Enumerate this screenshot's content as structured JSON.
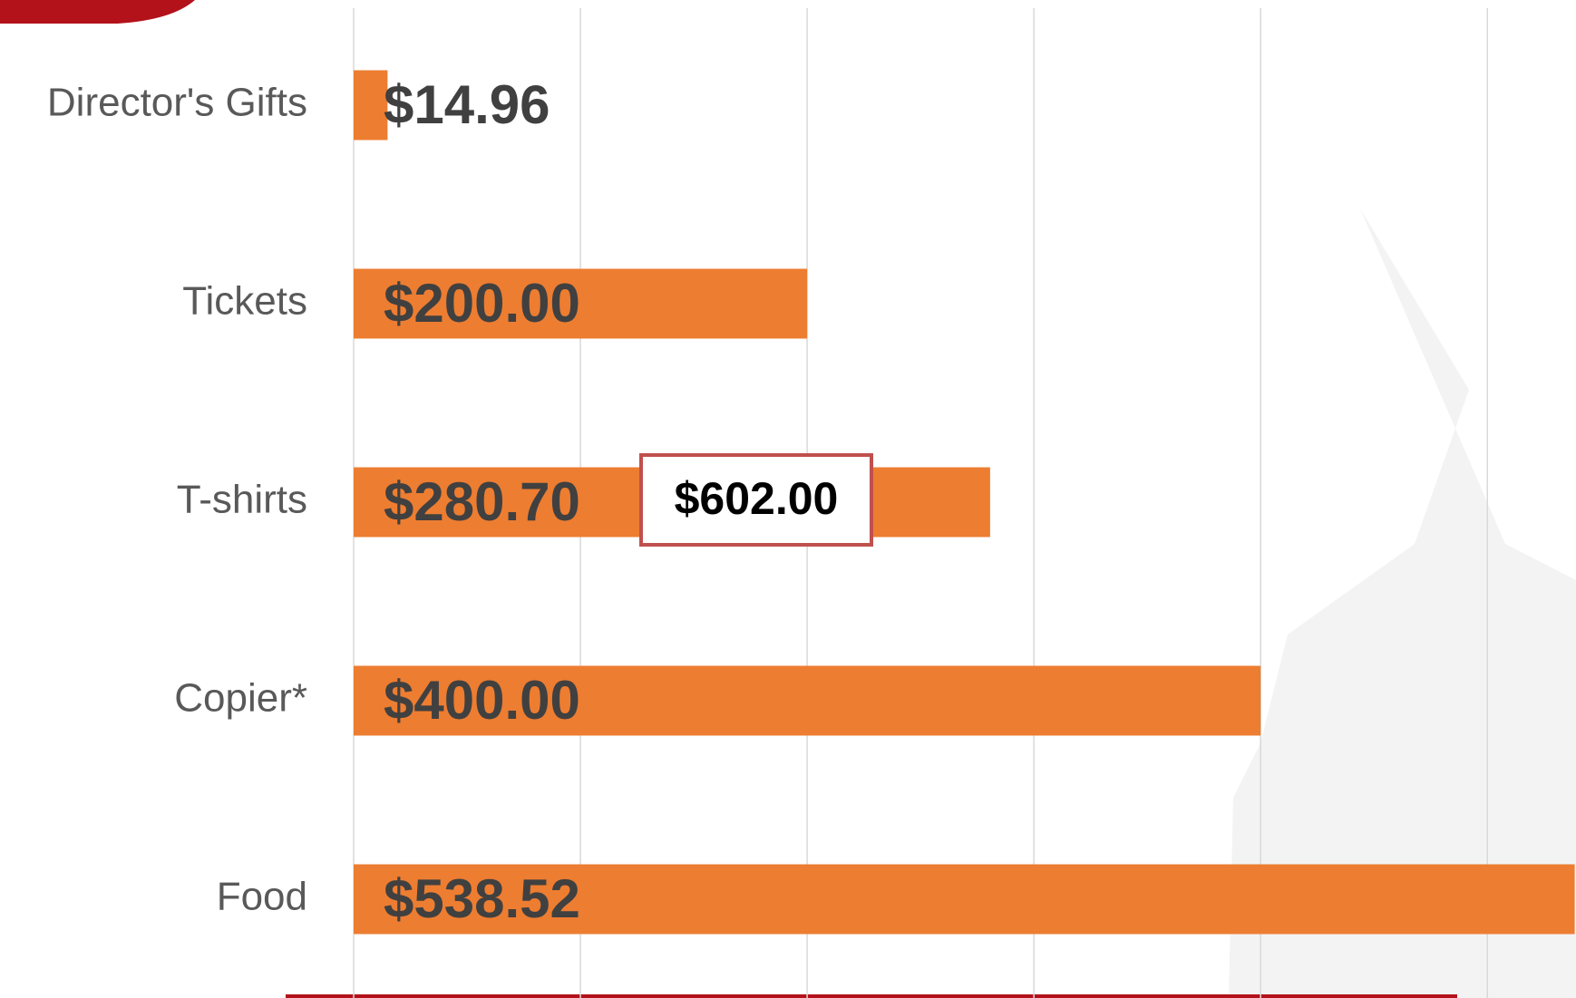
{
  "chart_data": {
    "type": "bar",
    "orientation": "horizontal",
    "categories": [
      "Director's Gifts",
      "Tickets",
      "T-shirts",
      "Copier*",
      "Food"
    ],
    "values": [
      14.96,
      200.0,
      280.7,
      400.0,
      538.52
    ],
    "value_labels": [
      "$14.96",
      "$200.00",
      "$280.70",
      "$400.00",
      "$538.52"
    ],
    "color": "#ed7d31",
    "xlim": [
      0,
      600
    ],
    "xticks": [
      0,
      100,
      200,
      300,
      400,
      500
    ],
    "grid": true,
    "annotation": "$602.00"
  }
}
